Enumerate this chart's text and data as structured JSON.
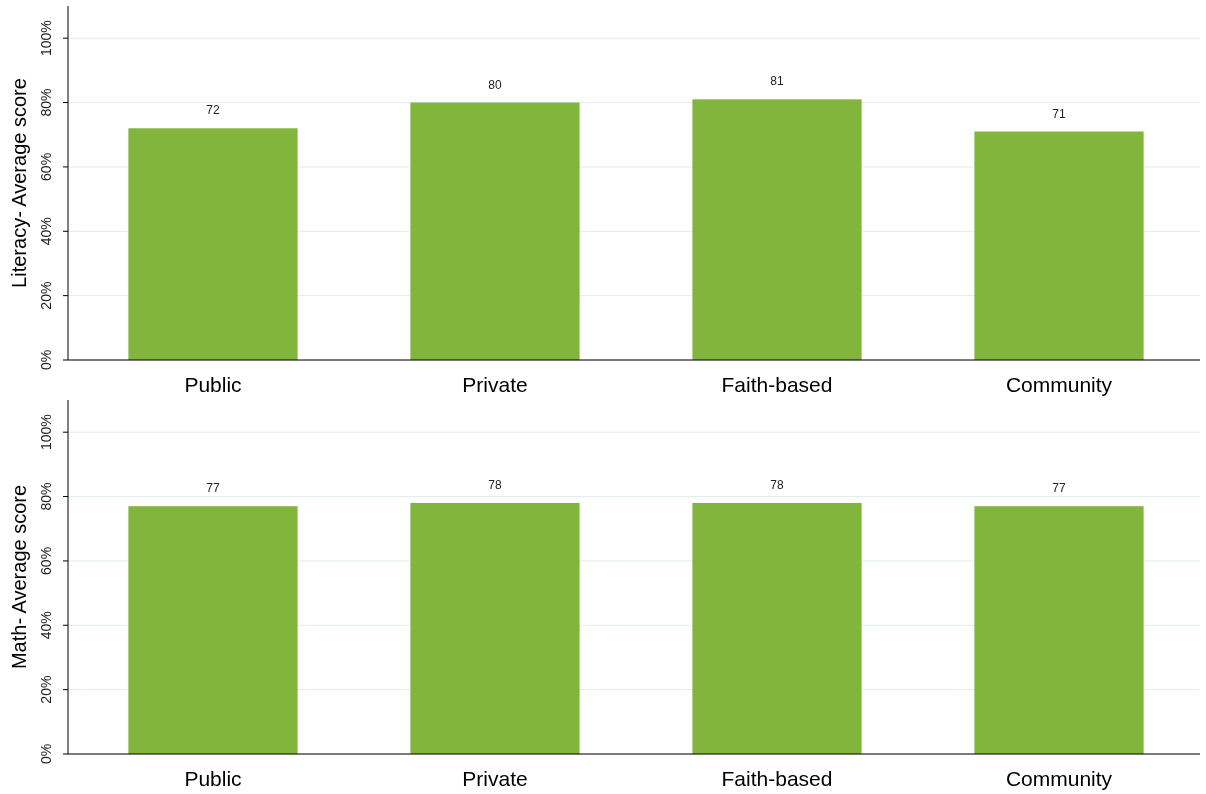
{
  "chart_data": [
    {
      "type": "bar",
      "ylabel": "Literacy- Average score",
      "categories": [
        "Public",
        "Private",
        "Faith-based",
        "Community"
      ],
      "values": [
        72,
        80,
        81,
        71
      ],
      "color": "#82b53c",
      "data_labels": true,
      "ylim": [
        0,
        110
      ],
      "yticks": [
        {
          "value": 0,
          "label": "0%"
        },
        {
          "value": 20,
          "label": "20%"
        },
        {
          "value": 40,
          "label": "40%"
        },
        {
          "value": 60,
          "label": "60%"
        },
        {
          "value": 80,
          "label": "80%"
        },
        {
          "value": 100,
          "label": "100%"
        }
      ],
      "grid": "y"
    },
    {
      "type": "bar",
      "ylabel": "Math- Average score",
      "categories": [
        "Public",
        "Private",
        "Faith-based",
        "Community"
      ],
      "values": [
        77,
        78,
        78,
        77
      ],
      "color": "#82b53c",
      "data_labels": true,
      "ylim": [
        0,
        110
      ],
      "yticks": [
        {
          "value": 0,
          "label": "0%"
        },
        {
          "value": 20,
          "label": "20%"
        },
        {
          "value": 40,
          "label": "40%"
        },
        {
          "value": 60,
          "label": "60%"
        },
        {
          "value": 80,
          "label": "80%"
        },
        {
          "value": 100,
          "label": "100%"
        }
      ],
      "grid": "y"
    }
  ]
}
